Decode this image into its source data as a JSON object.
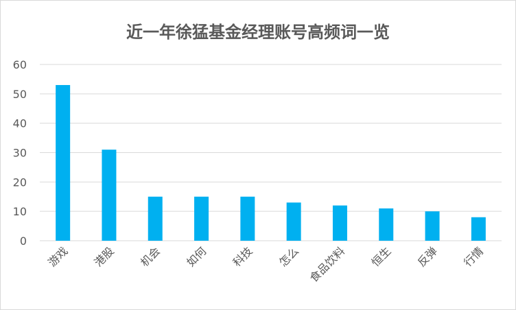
{
  "chart_data": {
    "type": "bar",
    "title": "近一年徐猛基金经理账号高频词一览",
    "xlabel": "",
    "ylabel": "",
    "categories": [
      "游戏",
      "港股",
      "机会",
      "如何",
      "科技",
      "怎么",
      "食品饮料",
      "恒生",
      "反弹",
      "行情"
    ],
    "values": [
      53,
      31,
      15,
      15,
      15,
      13,
      12,
      11,
      10,
      8
    ],
    "ylim": [
      0,
      60
    ],
    "yticks": [
      "0",
      "10",
      "20",
      "30",
      "40",
      "50",
      "60"
    ],
    "grid": true,
    "legend": "none",
    "bar_color": "#00b0f0"
  }
}
